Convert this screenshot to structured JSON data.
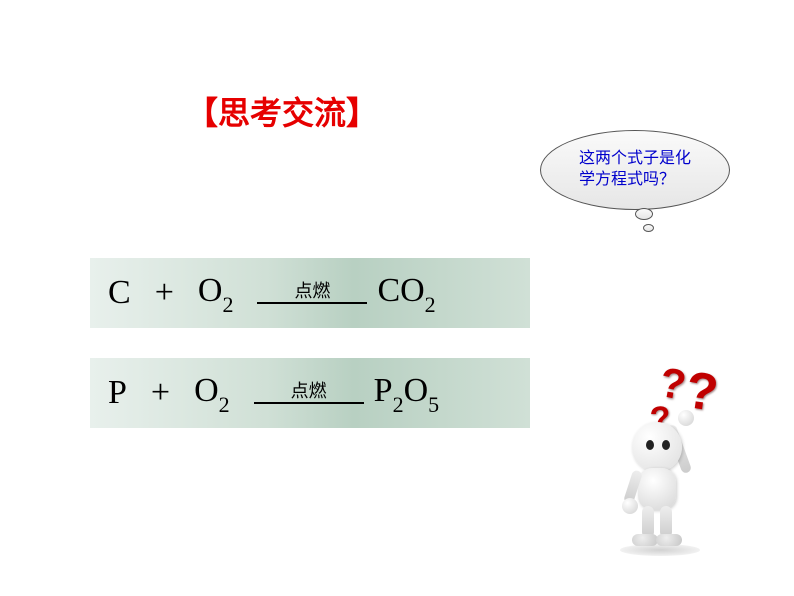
{
  "title": "【思考交流】",
  "bubble": {
    "line1": "这两个式子是化",
    "line2": "学方程式吗？"
  },
  "equations": [
    {
      "reactant1": "C",
      "plus": "+",
      "reactant2_base": "O",
      "reactant2_sub": "2",
      "condition": "点燃",
      "product_base": "CO",
      "product_sub": "2",
      "product2_base": "",
      "product2_sub": ""
    },
    {
      "reactant1": "P",
      "plus": "+",
      "reactant2_base": "O",
      "reactant2_sub": "2",
      "condition": "点燃",
      "product_base": "P",
      "product_sub": "2",
      "product2_base": "O",
      "product2_sub": "5"
    }
  ],
  "qmarks": {
    "q1": "?",
    "q2": "?",
    "q3": "?"
  },
  "colors": {
    "title": "#e60000",
    "bubble_text": "#0000cc",
    "qmark": "#c00000",
    "eq_bg_from": "#e8f0ec",
    "eq_bg_mid": "#b8d0c2"
  }
}
